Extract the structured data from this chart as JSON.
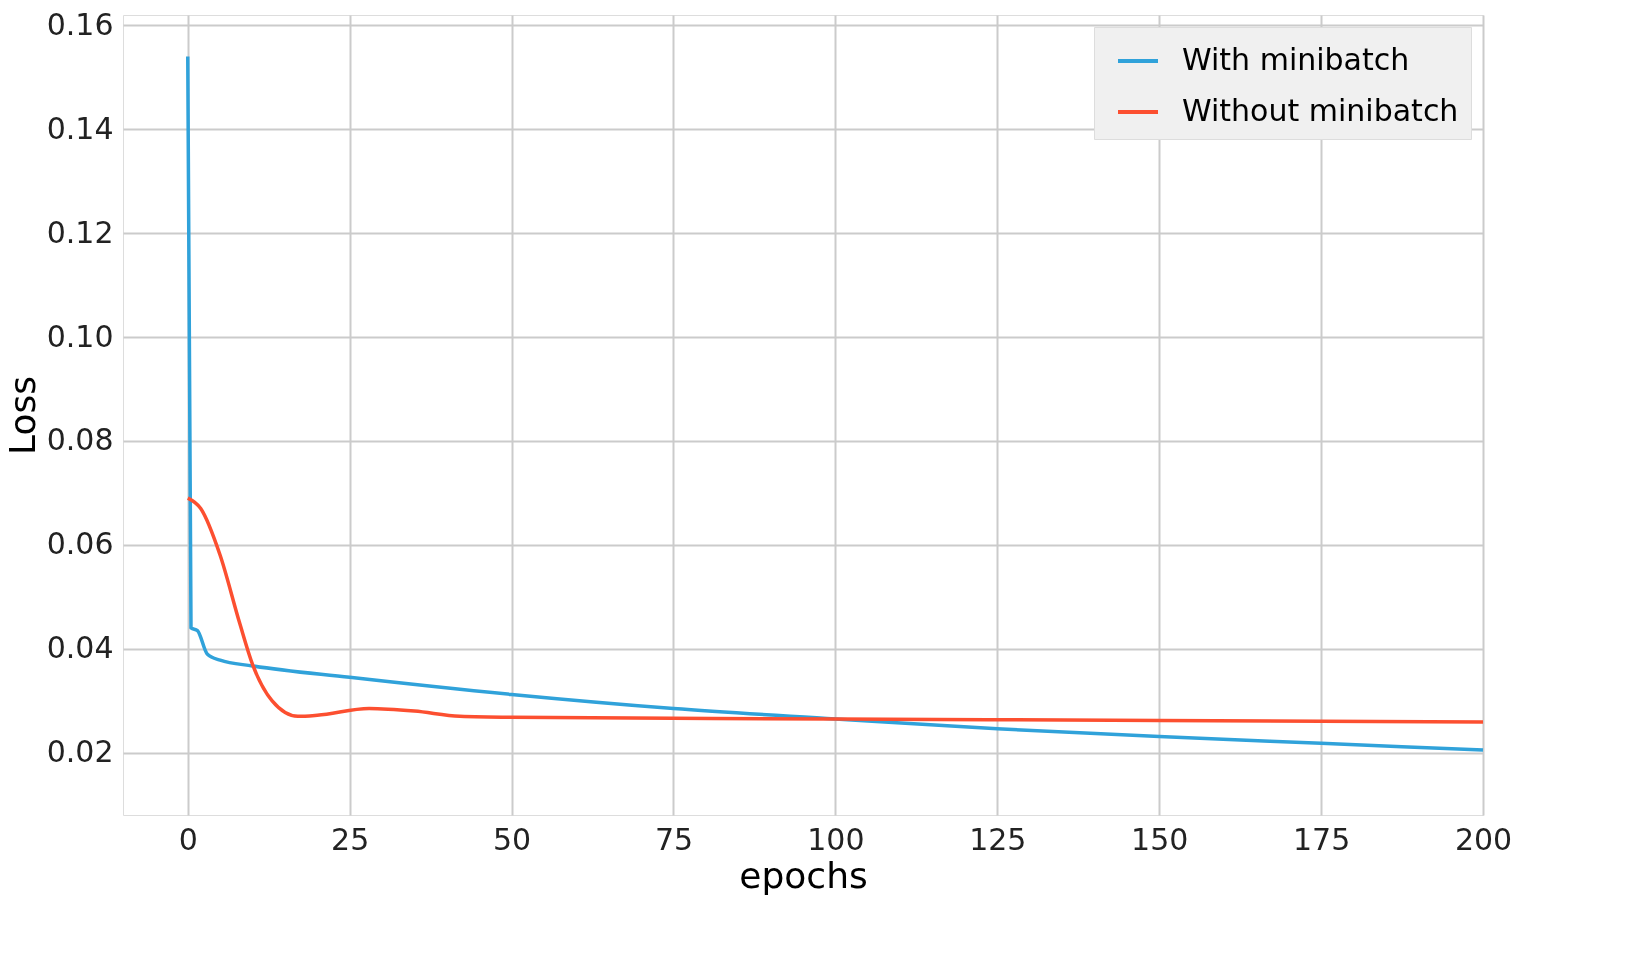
{
  "chart_data": {
    "type": "line",
    "xlabel": "epochs",
    "ylabel": "Loss",
    "xlim": [
      -10,
      200
    ],
    "ylim": [
      0.008,
      0.162
    ],
    "xticks": [
      0,
      25,
      50,
      75,
      100,
      125,
      150,
      175,
      200
    ],
    "yticks": [
      {
        "value": 0.02,
        "label": "0.02"
      },
      {
        "value": 0.04,
        "label": "0.04"
      },
      {
        "value": 0.06,
        "label": "0.06"
      },
      {
        "value": 0.08,
        "label": "0.08"
      },
      {
        "value": 0.1,
        "label": "0.10"
      },
      {
        "value": 0.12,
        "label": "0.12"
      },
      {
        "value": 0.14,
        "label": "0.14"
      },
      {
        "value": 0.16,
        "label": "0.16"
      }
    ],
    "grid": true,
    "legend": "top right",
    "line_style": "solid",
    "marker": "none",
    "series": [
      {
        "name": "With minibatch",
        "color": "#30a2da",
        "x": [
          0,
          0.5,
          1.5,
          3,
          5,
          10,
          25,
          50,
          75,
          100,
          125,
          150,
          175,
          200
        ],
        "values": [
          0.154,
          0.044,
          0.0435,
          0.039,
          0.0378,
          0.0367,
          0.0345,
          0.0312,
          0.0285,
          0.0265,
          0.0246,
          0.0231,
          0.0218,
          0.0205
        ]
      },
      {
        "name": "Without minibatch",
        "color": "#fc4f30",
        "x": [
          0,
          2,
          5,
          8,
          10,
          13,
          17,
          20,
          28,
          35,
          42,
          50,
          100,
          150,
          200
        ],
        "values": [
          0.069,
          0.067,
          0.058,
          0.045,
          0.037,
          0.03,
          0.027,
          0.0272,
          0.0285,
          0.028,
          0.027,
          0.0268,
          0.0265,
          0.0262,
          0.0259
        ]
      }
    ]
  }
}
